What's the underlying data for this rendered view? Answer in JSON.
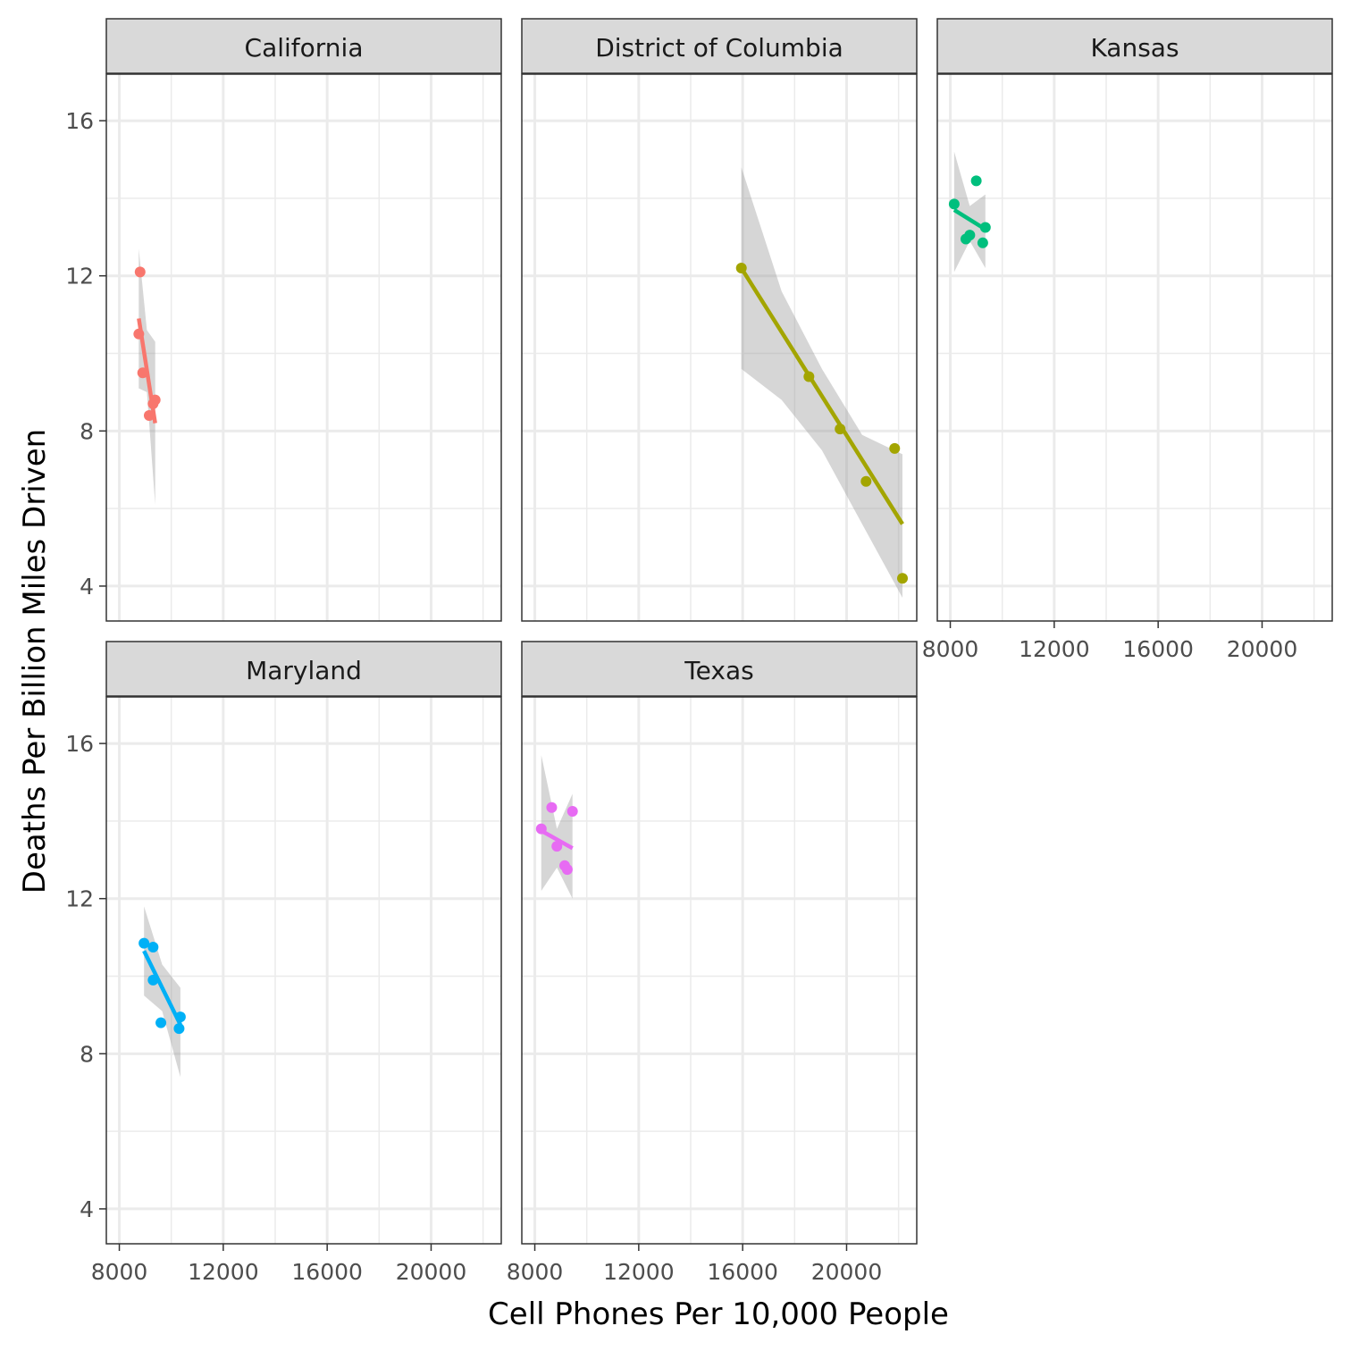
{
  "chart_data": {
    "type": "scatter",
    "layout": "facet_wrap",
    "xlabel": "Cell Phones Per 10,000 People",
    "ylabel": "Deaths Per Billion Miles Driven",
    "xlim": [
      7500,
      22700
    ],
    "ylim": [
      3.1,
      17.2
    ],
    "x_ticks": [
      8000,
      12000,
      16000,
      20000
    ],
    "y_ticks": [
      4,
      8,
      12,
      16
    ],
    "x_minor_ticks": [
      10000,
      14000,
      18000,
      22000
    ],
    "y_minor_ticks": [
      6,
      10,
      14
    ],
    "smoother": "linear fit with grey confidence band",
    "panel_background": "#ffffff",
    "grid": true,
    "grid_color": "#ebebeb",
    "strip_color": "#d9d9d9",
    "band_color": "#999999",
    "facets": [
      {
        "name": "California",
        "color": "#f8766d",
        "points": [
          [
            8800,
            12.1
          ],
          [
            8750,
            10.5
          ],
          [
            8900,
            9.5
          ],
          [
            9300,
            8.7
          ],
          [
            9150,
            8.4
          ],
          [
            9380,
            8.8
          ]
        ],
        "fit": {
          "x": [
            8750,
            9380
          ],
          "y": [
            10.9,
            8.2
          ]
        },
        "band": {
          "x": [
            8750,
            9060,
            9380
          ],
          "upper": [
            12.7,
            10.6,
            10.3
          ],
          "lower": [
            9.1,
            9.0,
            6.1
          ]
        }
      },
      {
        "name": "District of Columbia",
        "color": "#a3a500",
        "points": [
          [
            15950,
            12.2
          ],
          [
            18550,
            9.4
          ],
          [
            19750,
            8.05
          ],
          [
            20750,
            6.7
          ],
          [
            21850,
            7.55
          ],
          [
            22150,
            4.2
          ]
        ],
        "fit": {
          "x": [
            15950,
            22150
          ],
          "y": [
            12.2,
            5.6
          ]
        },
        "band": {
          "x": [
            15950,
            17500,
            19050,
            20600,
            22150
          ],
          "upper": [
            14.8,
            11.6,
            9.6,
            7.9,
            7.4
          ],
          "lower": [
            9.6,
            8.8,
            7.5,
            5.6,
            3.7
          ]
        }
      },
      {
        "name": "Kansas",
        "color": "#00bf7d",
        "points": [
          [
            8150,
            13.85
          ],
          [
            9000,
            14.45
          ],
          [
            9350,
            13.25
          ],
          [
            8750,
            13.05
          ],
          [
            8600,
            12.95
          ],
          [
            9250,
            12.85
          ]
        ],
        "fit": {
          "x": [
            8150,
            9350
          ],
          "y": [
            13.7,
            13.2
          ]
        },
        "band": {
          "x": [
            8150,
            8750,
            9350
          ],
          "upper": [
            15.2,
            13.8,
            14.1
          ],
          "lower": [
            12.1,
            12.9,
            12.2
          ]
        }
      },
      {
        "name": "Maryland",
        "color": "#00b0f6",
        "points": [
          [
            8950,
            10.85
          ],
          [
            9300,
            10.75
          ],
          [
            9300,
            9.9
          ],
          [
            9600,
            8.8
          ],
          [
            10350,
            8.95
          ],
          [
            10300,
            8.65
          ]
        ],
        "fit": {
          "x": [
            8950,
            10350
          ],
          "y": [
            10.65,
            8.75
          ]
        },
        "band": {
          "x": [
            8950,
            9650,
            10350
          ],
          "upper": [
            11.8,
            10.3,
            9.7
          ],
          "lower": [
            9.5,
            9.1,
            7.4
          ]
        }
      },
      {
        "name": "Texas",
        "color": "#e76bf3",
        "points": [
          [
            8250,
            13.8
          ],
          [
            8650,
            14.35
          ],
          [
            9450,
            14.25
          ],
          [
            8850,
            13.35
          ],
          [
            9150,
            12.85
          ],
          [
            9250,
            12.75
          ]
        ],
        "fit": {
          "x": [
            8250,
            9450
          ],
          "y": [
            13.75,
            13.3
          ]
        },
        "band": {
          "x": [
            8250,
            8850,
            9450
          ],
          "upper": [
            15.7,
            13.8,
            14.7
          ],
          "lower": [
            12.2,
            12.8,
            12.0
          ]
        }
      }
    ]
  }
}
